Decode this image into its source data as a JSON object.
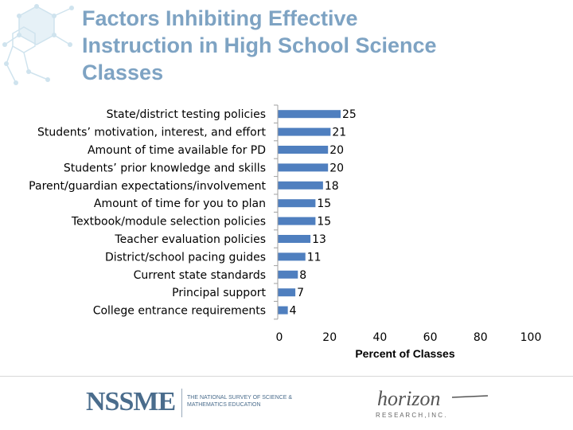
{
  "slide": {
    "title": "Factors Inhibiting Effective\nInstruction in High School Science\nClasses"
  },
  "logos": {
    "nssme": "NSSME",
    "nssme_sub": "The National Survey of Science & Mathematics Education",
    "horizon": "horizon",
    "horizon_sub": "R E S E A R C H , I N C ."
  },
  "colors": {
    "bar": "#4f7fbf",
    "title": "#7ea3c3",
    "axis": "#a0a0a0"
  },
  "chart_data": {
    "type": "bar",
    "orientation": "horizontal",
    "categories": [
      "State/district testing policies",
      "Students’ motivation, interest, and effort",
      "Amount of time available for PD",
      "Students’ prior knowledge and skills",
      "Parent/guardian expectations/involvement",
      "Amount of time for you to plan",
      "Textbook/module selection policies",
      "Teacher evaluation policies",
      "District/school pacing guides",
      "Current state standards",
      "Principal support",
      "College entrance requirements"
    ],
    "values": [
      25,
      21,
      20,
      20,
      18,
      15,
      15,
      13,
      11,
      8,
      7,
      4
    ],
    "title": "",
    "xlabel": "Percent of Classes",
    "ylabel": "",
    "xlim": [
      0,
      100
    ],
    "xticks": [
      0,
      20,
      40,
      60,
      80,
      100
    ],
    "grid": false,
    "legend": "none"
  }
}
